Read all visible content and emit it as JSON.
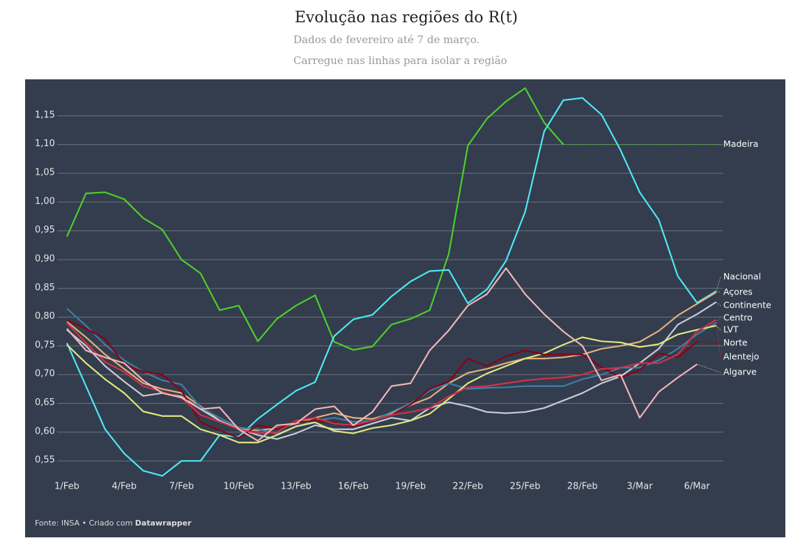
{
  "chart_data": {
    "type": "line",
    "title": "Evolução nas regiões do R(t)",
    "subtitle": "Dados de fevereiro até 7 de março.",
    "subtitle2": "Carregue nas linhas para isolar a região",
    "source": "Fonte: INSA • Criado com",
    "credit": "Datawrapper",
    "categories": [
      "1/Feb",
      null,
      null,
      "4/Feb",
      null,
      null,
      "7/Feb",
      null,
      null,
      "10/Feb",
      null,
      null,
      "13/Feb",
      null,
      null,
      "16/Feb",
      null,
      null,
      "19/Feb",
      null,
      null,
      "22/Feb",
      null,
      null,
      "25/Feb",
      null,
      null,
      "28/Feb",
      null,
      null,
      "3/Mar",
      null,
      null,
      "6/Mar",
      null
    ],
    "ylim": [
      0.52,
      1.2
    ],
    "yticks": [
      {
        "value": 0.55,
        "label": "0,55"
      },
      {
        "value": 0.6,
        "label": "0,60"
      },
      {
        "value": 0.65,
        "label": "0,65"
      },
      {
        "value": 0.7,
        "label": "0,70"
      },
      {
        "value": 0.75,
        "label": "0,75"
      },
      {
        "value": 0.8,
        "label": "0,80"
      },
      {
        "value": 0.85,
        "label": "0,85"
      },
      {
        "value": 0.9,
        "label": "0,90"
      },
      {
        "value": 0.95,
        "label": "0,95"
      },
      {
        "value": 1.0,
        "label": "1,00"
      },
      {
        "value": 1.05,
        "label": "1,05"
      },
      {
        "value": 1.1,
        "label": "1,10"
      },
      {
        "value": 1.15,
        "label": "1,15"
      }
    ],
    "grid": true,
    "series": [
      {
        "name": "Madeira",
        "color": "#4ccf2c",
        "values": [
          0.94,
          1.015,
          1.017,
          1.005,
          0.972,
          0.952,
          0.9,
          0.876,
          0.812,
          0.82,
          0.758,
          0.797,
          0.82,
          0.838,
          0.757,
          0.743,
          0.749,
          0.787,
          0.797,
          0.812,
          0.91,
          1.098,
          1.145,
          1.175,
          1.198,
          1.138,
          1.1,
          null,
          null,
          null,
          null,
          null,
          null,
          null,
          null
        ]
      },
      {
        "name": "Açores",
        "color": "#4ee8f5",
        "values": [
          0.755,
          0.68,
          0.605,
          0.563,
          0.533,
          0.524,
          0.55,
          0.55,
          0.595,
          0.592,
          0.623,
          0.648,
          0.672,
          0.687,
          0.767,
          0.796,
          0.804,
          0.836,
          0.862,
          0.88,
          0.882,
          0.824,
          0.848,
          0.898,
          0.983,
          1.123,
          1.177,
          1.181,
          1.152,
          1.09,
          1.017,
          0.969,
          0.871,
          0.825,
          0.845
        ]
      },
      {
        "name": "Nacional",
        "color": "#e3b07c",
        "values": [
          0.792,
          0.765,
          0.735,
          0.71,
          0.685,
          0.675,
          0.668,
          0.645,
          0.62,
          0.605,
          0.603,
          0.607,
          0.615,
          0.625,
          0.633,
          0.625,
          0.623,
          0.633,
          0.647,
          0.66,
          0.685,
          0.703,
          0.71,
          0.72,
          0.728,
          0.728,
          0.73,
          0.735,
          0.745,
          0.75,
          0.757,
          0.776,
          0.803,
          0.823,
          0.843
        ]
      },
      {
        "name": "Continente",
        "color": "#c9ccd6",
        "values": [
          0.778,
          0.75,
          0.715,
          0.688,
          0.663,
          0.668,
          0.662,
          0.64,
          0.62,
          0.606,
          0.595,
          0.588,
          0.598,
          0.612,
          0.605,
          0.605,
          0.615,
          0.625,
          0.62,
          0.642,
          0.652,
          0.645,
          0.635,
          0.633,
          0.635,
          0.642,
          0.655,
          0.668,
          0.685,
          0.697,
          0.72,
          0.745,
          0.787,
          0.805,
          0.826
        ]
      },
      {
        "name": "Centro",
        "color": "#3f7fa6",
        "values": [
          0.815,
          0.785,
          0.752,
          0.725,
          0.705,
          0.69,
          0.683,
          0.643,
          0.625,
          0.608,
          0.605,
          0.597,
          0.61,
          0.62,
          0.625,
          0.618,
          0.62,
          0.635,
          0.65,
          0.672,
          0.685,
          0.675,
          0.677,
          0.678,
          0.68,
          0.68,
          0.68,
          0.692,
          0.7,
          0.712,
          0.712,
          0.725,
          0.745,
          0.77,
          0.79
        ]
      },
      {
        "name": "LVT",
        "color": "#e1e87e",
        "values": [
          0.752,
          0.72,
          0.692,
          0.668,
          0.636,
          0.628,
          0.628,
          0.605,
          0.595,
          0.582,
          0.582,
          0.595,
          0.61,
          0.617,
          0.602,
          0.598,
          0.607,
          0.612,
          0.62,
          0.632,
          0.658,
          0.685,
          0.702,
          0.715,
          0.728,
          0.737,
          0.752,
          0.765,
          0.758,
          0.756,
          0.748,
          0.753,
          0.77,
          0.778,
          0.785
        ]
      },
      {
        "name": "Norte",
        "color": "#8b0015",
        "values": [
          0.795,
          0.78,
          0.762,
          0.718,
          0.705,
          0.7,
          0.672,
          0.617,
          0.603,
          0.59,
          0.612,
          0.606,
          0.617,
          0.62,
          0.617,
          0.61,
          0.62,
          0.63,
          0.648,
          0.675,
          0.688,
          0.728,
          0.715,
          0.732,
          0.742,
          0.735,
          0.735,
          0.735,
          0.713,
          0.695,
          0.708,
          0.737,
          0.73,
          0.757,
          null
        ]
      },
      {
        "name": "Alentejo",
        "color": "#d1324a",
        "values": [
          0.79,
          0.755,
          0.722,
          0.705,
          0.68,
          0.67,
          0.66,
          0.63,
          0.618,
          0.605,
          0.598,
          0.6,
          0.62,
          0.625,
          0.615,
          0.612,
          0.62,
          0.63,
          0.635,
          0.642,
          0.662,
          0.678,
          0.68,
          0.685,
          0.69,
          0.693,
          0.695,
          0.7,
          0.71,
          0.712,
          0.72,
          0.72,
          0.735,
          0.775,
          0.795
        ]
      },
      {
        "name": "Algarve",
        "color": "#f2b4ba",
        "values": [
          0.78,
          0.742,
          0.73,
          0.72,
          0.69,
          0.668,
          0.66,
          0.64,
          0.643,
          0.605,
          0.585,
          0.612,
          0.615,
          0.64,
          0.645,
          0.612,
          0.635,
          0.68,
          0.685,
          0.742,
          0.777,
          0.82,
          0.84,
          0.885,
          0.84,
          0.805,
          0.775,
          0.75,
          0.69,
          0.7,
          0.625,
          0.67,
          0.695,
          0.718,
          null
        ]
      }
    ]
  }
}
